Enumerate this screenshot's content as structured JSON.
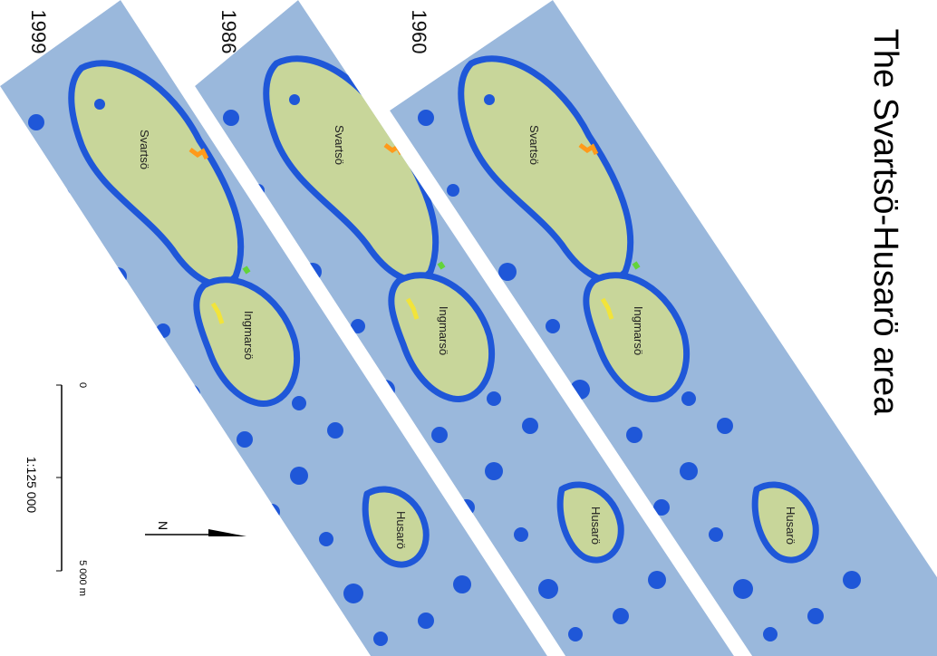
{
  "title": "The Svartsö-Husarö area",
  "panels": [
    {
      "year": "1960",
      "labels": [
        "Svartsö",
        "Ingmarsö",
        "Husarö"
      ]
    },
    {
      "year": "1986",
      "labels": [
        "Svartsö",
        "Ingmarsö",
        "Husarö"
      ]
    },
    {
      "year": "1999",
      "labels": [
        "Svartsö",
        "Ingmarsö",
        "Husarö"
      ]
    }
  ],
  "scale": {
    "start": "0",
    "ratio": "1:125 000",
    "end": "5 000 m"
  },
  "north": "N"
}
